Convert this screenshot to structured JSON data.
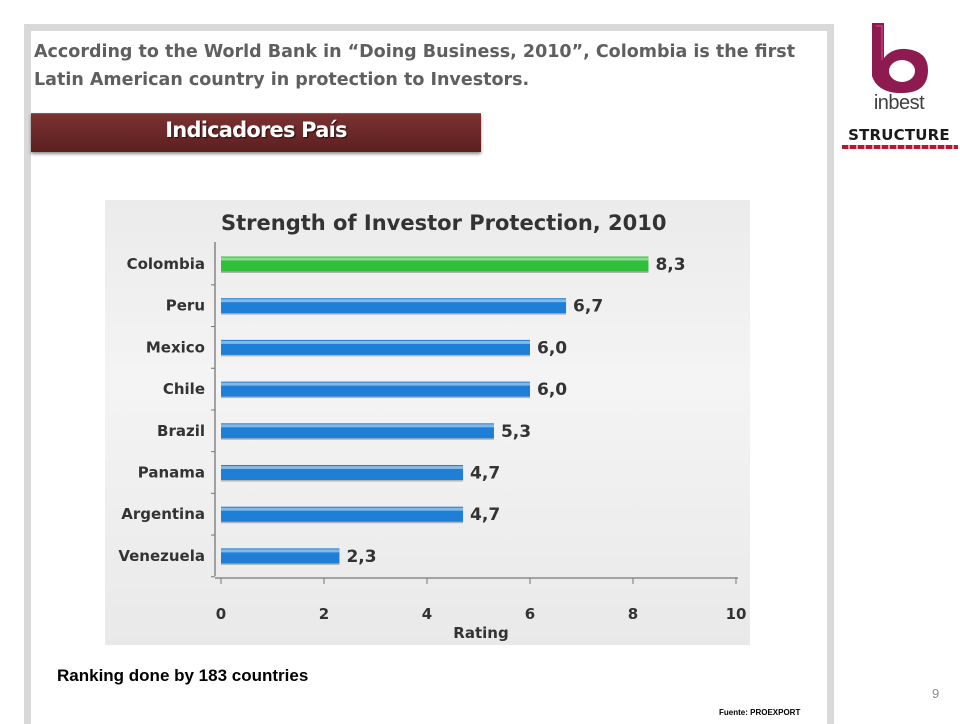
{
  "slide": {
    "headline": "According to the World Bank in “Doing Business, 2010”, Colombia is the first Latin American country in protection to Investors.",
    "banner": "Indicadores País",
    "ranking_note": "Ranking done by 183 countries",
    "source": "Fuente: PROEXPORT",
    "page_number": "9"
  },
  "logo": {
    "word": "inbest",
    "structure": "STRUCTURE",
    "icon": "inbest-b-logo-icon",
    "brand_color": "#8e1b4f"
  },
  "chart_data": {
    "type": "bar",
    "orientation": "horizontal",
    "title": "Strength of Investor Protection, 2010",
    "xlabel": "Rating",
    "ylabel": "",
    "xlim": [
      0,
      10
    ],
    "xticks": [
      "0",
      "2",
      "4",
      "6",
      "8",
      "10"
    ],
    "grid": false,
    "categories": [
      "Colombia",
      "Peru",
      "Mexico",
      "Chile",
      "Brazil",
      "Panama",
      "Argentina",
      "Venezuela"
    ],
    "values": [
      8.3,
      6.7,
      6.0,
      6.0,
      5.3,
      4.7,
      4.7,
      2.3
    ],
    "value_labels": [
      "8,3",
      "6,7",
      "6,0",
      "6,0",
      "5,3",
      "4,7",
      "4,7",
      "2,3"
    ],
    "colors": [
      "#2fbf3a",
      "#1f7fd6",
      "#1f7fd6",
      "#1f7fd6",
      "#1f7fd6",
      "#1f7fd6",
      "#1f7fd6",
      "#1f7fd6"
    ]
  }
}
